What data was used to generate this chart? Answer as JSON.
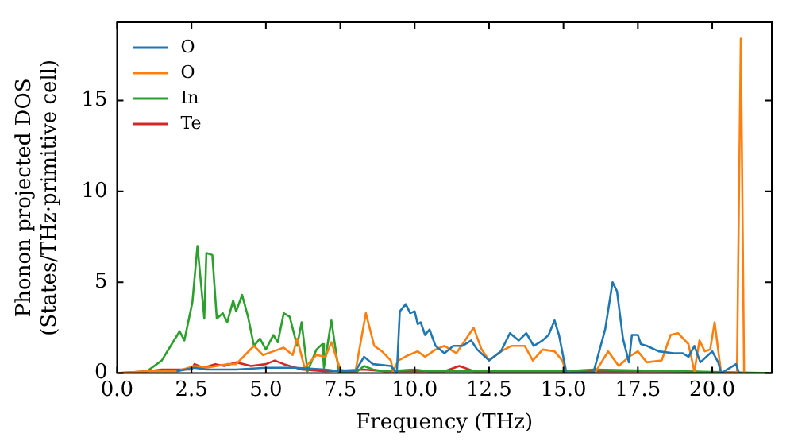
{
  "chart_data": {
    "type": "line",
    "xlabel": "Frequency (THz)",
    "ylabel": "Phonon projected DOS\n(States/THz·primitive cell)",
    "xlim": [
      0,
      22
    ],
    "ylim": [
      0,
      19.3
    ],
    "xticks": [
      {
        "value": 0,
        "label": "0.0"
      },
      {
        "value": 2.5,
        "label": "2.5"
      },
      {
        "value": 5,
        "label": "5.0"
      },
      {
        "value": 7.5,
        "label": "7.5"
      },
      {
        "value": 10,
        "label": "10.0"
      },
      {
        "value": 12.5,
        "label": "12.5"
      },
      {
        "value": 15,
        "label": "15.0"
      },
      {
        "value": 17.5,
        "label": "17.5"
      },
      {
        "value": 20,
        "label": "20.0"
      }
    ],
    "yticks": [
      0,
      5,
      10,
      15
    ],
    "grid": false,
    "legend": "top left",
    "marker": "none",
    "line_style": "solid",
    "series": [
      {
        "name": "O",
        "color": "#1f77b4",
        "x": [
          2,
          2.6,
          3,
          3.5,
          4,
          5,
          6,
          7,
          7.5,
          8,
          8.3,
          8.6,
          9.2,
          9.4,
          9.5,
          9.7,
          9.85,
          10,
          10.1,
          10.2,
          10.35,
          10.5,
          10.7,
          11,
          11.3,
          11.6,
          11.9,
          12.1,
          12.5,
          12.9,
          13.2,
          13.5,
          13.75,
          14,
          14.3,
          14.5,
          14.7,
          14.85,
          15.1,
          16,
          16.4,
          16.65,
          16.8,
          17,
          17.2,
          17.3,
          17.5,
          17.6,
          17.8,
          18.2,
          18.7,
          19,
          19.2,
          19.4,
          19.6,
          19.8,
          20,
          20.2,
          20.3,
          20.8,
          20.9
        ],
        "values": [
          0.1,
          0.3,
          0.2,
          0.2,
          0.2,
          0.3,
          0.3,
          0.2,
          0.1,
          0.1,
          0.9,
          0.5,
          0.4,
          0,
          3.4,
          3.8,
          3.3,
          3.4,
          2.7,
          2.8,
          2.1,
          2.4,
          1.5,
          1.1,
          1.5,
          1.5,
          1.8,
          1.3,
          0.7,
          1.2,
          2.2,
          1.8,
          2.2,
          1.5,
          1.8,
          2.1,
          2.9,
          2.1,
          0,
          0,
          2.4,
          5.0,
          4.5,
          1.9,
          0.6,
          2.1,
          2.1,
          1.6,
          1.5,
          1.2,
          1.1,
          1.1,
          0.9,
          1.5,
          0.6,
          0.9,
          1.2,
          0.6,
          0,
          0.5,
          0
        ]
      },
      {
        "name": "O",
        "color": "#ff7f0e",
        "x": [
          0,
          1,
          2,
          2.6,
          3,
          3.7,
          4,
          4.6,
          4.9,
          5.25,
          5.6,
          5.9,
          6.05,
          6.3,
          6.7,
          7,
          7.2,
          7.5,
          8,
          8.36,
          8.64,
          8.9,
          9.2,
          9.27,
          9.45,
          9.8,
          10.1,
          10.35,
          10.7,
          11,
          11.4,
          11.98,
          12.25,
          12.5,
          12.9,
          13.25,
          13.7,
          13.97,
          14.3,
          14.7,
          14.96,
          15.1,
          16.05,
          16.5,
          16.86,
          17.2,
          17.5,
          17.8,
          18.3,
          18.6,
          18.85,
          19.2,
          19.4,
          19.57,
          19.75,
          19.93,
          20.08,
          20.3,
          20.83,
          20.96,
          21.07
        ],
        "values": [
          0,
          0.1,
          0.1,
          0.4,
          0.3,
          0.5,
          0.5,
          1.5,
          1.0,
          1.2,
          1.4,
          1.0,
          1.9,
          0.3,
          1.0,
          0.9,
          1.7,
          0.2,
          0,
          3.3,
          1.5,
          1.2,
          0.7,
          0.1,
          0.7,
          1.0,
          1.2,
          0.9,
          1.3,
          1.5,
          1.1,
          2.5,
          1.3,
          0.7,
          1.2,
          1.5,
          1.5,
          0.7,
          1.3,
          1.2,
          0.7,
          0,
          0,
          1.2,
          0.4,
          0.9,
          1.2,
          0.6,
          0.7,
          2.1,
          2.2,
          1.6,
          0.1,
          1.8,
          1.2,
          1.3,
          2.8,
          0,
          0,
          18.4,
          0
        ]
      },
      {
        "name": "In",
        "color": "#2ca02c",
        "x": [
          0,
          0.5,
          1,
          1.5,
          1.8,
          2.1,
          2.26,
          2.53,
          2.7,
          2.93,
          3,
          3.2,
          3.35,
          3.55,
          3.7,
          3.9,
          4,
          4.2,
          4.4,
          4.6,
          4.8,
          5,
          5.25,
          5.4,
          5.6,
          5.8,
          6.05,
          6.2,
          6.4,
          6.7,
          6.9,
          6.95,
          7.2,
          7.46,
          8,
          8.3,
          8.6,
          9,
          10,
          10.5,
          12,
          14,
          15,
          16,
          22
        ],
        "values": [
          0,
          0,
          0.1,
          0.7,
          1.5,
          2.3,
          1.8,
          3.9,
          7.0,
          3.0,
          6.6,
          6.5,
          3.0,
          3.3,
          2.8,
          4.0,
          3.4,
          4.3,
          3.1,
          1.5,
          1.9,
          1.3,
          2.1,
          1.7,
          3.3,
          3.1,
          1.5,
          2.8,
          0.1,
          1.3,
          1.6,
          0.3,
          2.9,
          0,
          0,
          0.4,
          0.2,
          0.1,
          0.2,
          0.1,
          0.1,
          0.1,
          0.1,
          0.2,
          0
        ]
      },
      {
        "name": "Te",
        "color": "#d62728",
        "x": [
          0,
          1,
          1.5,
          2.5,
          2.6,
          2.9,
          3.3,
          3.6,
          4.0,
          4.5,
          5.0,
          5.3,
          5.6,
          6.2,
          7,
          8.3,
          9,
          11,
          11.5,
          12,
          15,
          19,
          20.5,
          22
        ],
        "values": [
          0,
          0.1,
          0.2,
          0.2,
          0.5,
          0.3,
          0.5,
          0.4,
          0.6,
          0.4,
          0.5,
          0.7,
          0.5,
          0.2,
          0.1,
          0.2,
          0.1,
          0.1,
          0.4,
          0.1,
          0.1,
          0.1,
          0,
          0
        ]
      }
    ]
  }
}
